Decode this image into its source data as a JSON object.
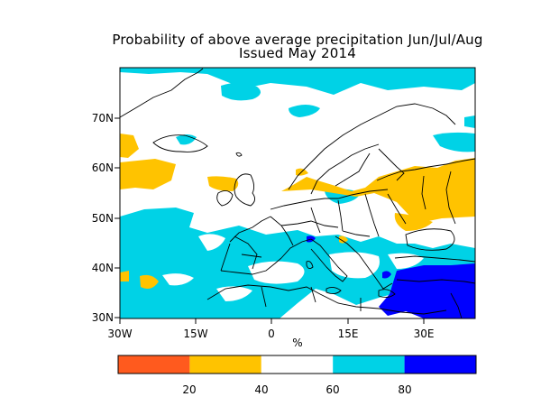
{
  "title": {
    "line1": "Probability of above average precipitation Jun/Jul/Aug",
    "line2": "Issued May 2014"
  },
  "map": {
    "region": "Europe",
    "lon_range": [
      -30,
      40
    ],
    "lat_range": [
      30,
      80
    ],
    "x_ticks": [
      "30W",
      "15W",
      "0",
      "15E",
      "30E"
    ],
    "y_ticks": [
      "70N",
      "60N",
      "50N",
      "40N",
      "30N"
    ],
    "unit_label": "%"
  },
  "legend": {
    "bins": [
      {
        "range": "0-20",
        "color": "#ff5a1e"
      },
      {
        "range": "20-40",
        "color": "#ffc300"
      },
      {
        "range": "40-60",
        "color": "#ffffff"
      },
      {
        "range": "60-80",
        "color": "#00d2e6"
      },
      {
        "range": "80-100",
        "color": "#0000ff"
      }
    ],
    "tick_labels": [
      "20",
      "40",
      "60",
      "80"
    ]
  },
  "colors": {
    "above_60": "#00d2e6",
    "below_40": "#ffc300",
    "above_80": "#0000ff",
    "coast": "#000000"
  }
}
